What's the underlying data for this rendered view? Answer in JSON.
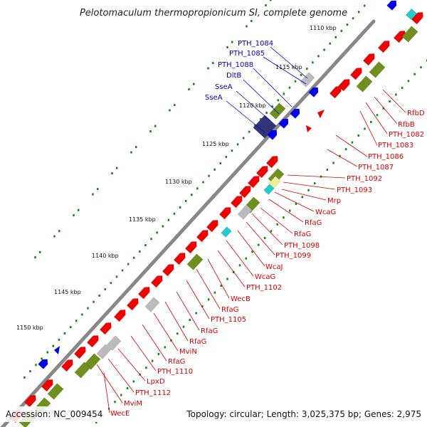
{
  "title": "Pelotomaculum thermopropionicum SI, complete genome",
  "footer": {
    "accession": "Accession: NC_009454",
    "topology": "Topology: circular; Length: 3,025,375 bp; Genes: 2,975"
  },
  "kbp_labels": [
    "1110 kbp",
    "1115 kbp",
    "1120 kbp",
    "1125 kbp",
    "1130 kbp",
    "1135 kbp",
    "1140 kbp",
    "1145 kbp",
    "1150 kbp"
  ],
  "blue_labels": [
    "PTH_1084",
    "PTH_1085",
    "PTH_1088",
    "DltB",
    "SseA",
    "SseA"
  ],
  "red_labels": [
    "RfbD",
    "RfbB",
    "PTH_1082",
    "PTH_1083",
    "PTH_1086",
    "PTH_1087",
    "PTH_1092",
    "PTH_1093",
    "Mrp",
    "WcaG",
    "RfaG",
    "RfaG",
    "PTH_1098",
    "PTH_1099",
    "WcaJ",
    "PTH_1102",
    "WcaG",
    "WecB",
    "RfaG",
    "PTH_1105",
    "RfaG",
    "RfaG",
    "MviN",
    "RfaG",
    "PTH_1110",
    "LpxD",
    "PTH_1112",
    "MviM",
    "WecE"
  ],
  "colors": {
    "backbone": "#888888",
    "forward_cds": "#ee0000",
    "reverse_cds": "#0000ee",
    "olive_block": "#6f8f1f",
    "grey_block": "#bbbbbb",
    "cyan_block": "#22cccc",
    "yellow_block": "#eeee99",
    "navy_block": "#333377",
    "dots": "#118811",
    "label_red": "#d40000",
    "label_blue": "#0000cc"
  }
}
